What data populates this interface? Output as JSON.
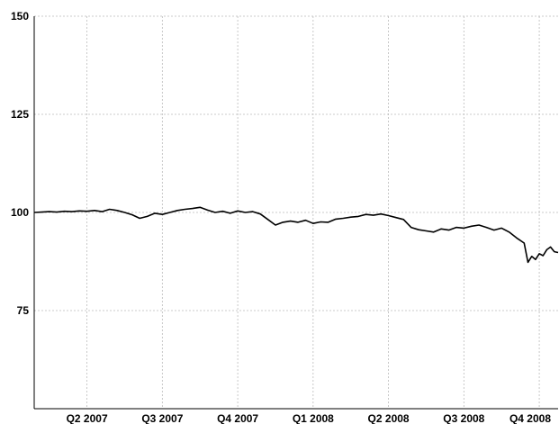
{
  "chart_data": {
    "type": "line",
    "title": "",
    "xlabel": "",
    "ylabel": "",
    "ylim": [
      50,
      150
    ],
    "y_ticks": [
      75,
      100,
      125,
      150
    ],
    "x_ticks": [
      "Q2 2007",
      "Q3 2007",
      "Q4 2007",
      "Q1 2008",
      "Q2 2008",
      "Q3 2008",
      "Q4 2008"
    ],
    "x_tick_positions": [
      0.7,
      1.7,
      2.7,
      3.7,
      4.7,
      5.7,
      6.7
    ],
    "xlim": [
      0,
      6.95
    ],
    "grid": true,
    "line_color": "#000000",
    "grid_color": "#bbbbbb",
    "series": [
      {
        "x": [
          0,
          0.1,
          0.2,
          0.3,
          0.4,
          0.5,
          0.6,
          0.7,
          0.8,
          0.9,
          1.0,
          1.1,
          1.2,
          1.3,
          1.4,
          1.5,
          1.6,
          1.7,
          1.8,
          1.9,
          2.0,
          2.1,
          2.2,
          2.3,
          2.4,
          2.5,
          2.6,
          2.7,
          2.8,
          2.9,
          3.0,
          3.1,
          3.2,
          3.3,
          3.4,
          3.5,
          3.6,
          3.7,
          3.8,
          3.9,
          4.0,
          4.1,
          4.2,
          4.3,
          4.4,
          4.5,
          4.6,
          4.7,
          4.8,
          4.9,
          5.0,
          5.1,
          5.2,
          5.3,
          5.4,
          5.5,
          5.6,
          5.7,
          5.8,
          5.9,
          6.0,
          6.1,
          6.2,
          6.3,
          6.4,
          6.5,
          6.55,
          6.6,
          6.65,
          6.7,
          6.75,
          6.8,
          6.85,
          6.9,
          6.95
        ],
        "y": [
          100,
          100.1,
          100.2,
          100.1,
          100.3,
          100.2,
          100.4,
          100.3,
          100.5,
          100.2,
          100.8,
          100.5,
          100.0,
          99.4,
          98.5,
          99.0,
          99.8,
          99.5,
          100.0,
          100.5,
          100.8,
          101.0,
          101.3,
          100.6,
          100.0,
          100.3,
          99.8,
          100.4,
          100.0,
          100.2,
          99.6,
          98.2,
          96.8,
          97.5,
          97.8,
          97.5,
          98.0,
          97.2,
          97.6,
          97.5,
          98.3,
          98.5,
          98.8,
          99.0,
          99.5,
          99.3,
          99.6,
          99.2,
          98.7,
          98.2,
          96.2,
          95.6,
          95.3,
          95.0,
          95.8,
          95.5,
          96.2,
          96.0,
          96.5,
          96.8,
          96.2,
          95.5,
          96.0,
          95.0,
          93.5,
          92.2,
          87.3,
          88.8,
          88.0,
          89.5,
          89.0,
          90.5,
          91.2,
          90.0,
          89.8
        ]
      }
    ]
  }
}
